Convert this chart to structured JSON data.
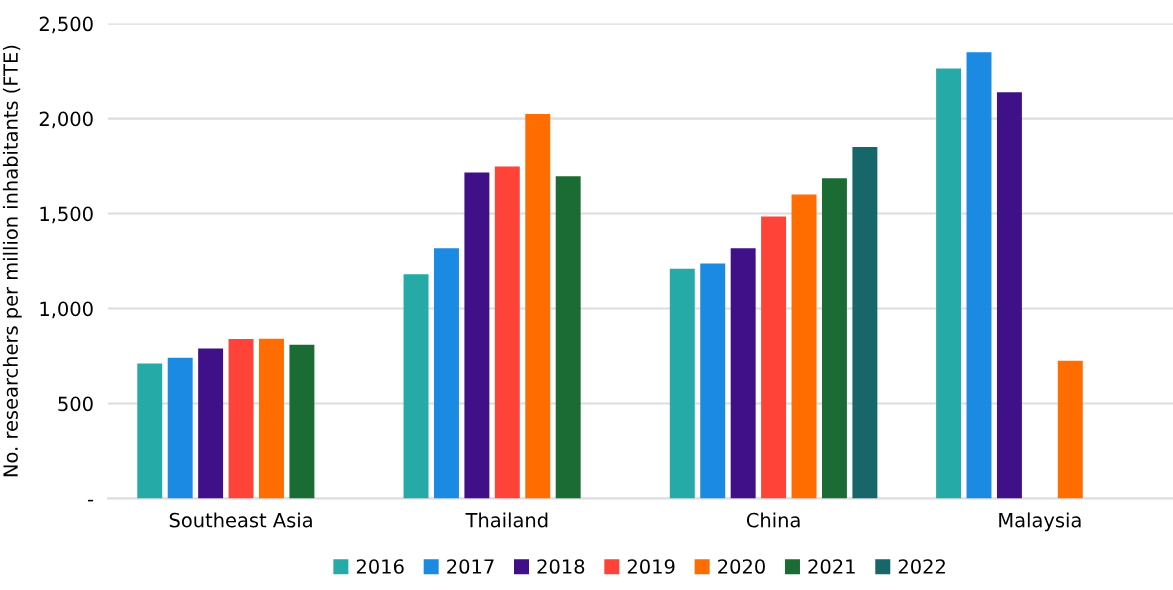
{
  "chart_data": {
    "type": "bar",
    "ylabel": "No. researchers per million inhabitants (FTE)",
    "categories": [
      "Southeast Asia",
      "Thailand",
      "China",
      "Malaysia"
    ],
    "series": [
      {
        "name": "2016",
        "color": "#26aaa8",
        "values": [
          711,
          1180,
          1209,
          2264
        ]
      },
      {
        "name": "2017",
        "color": "#1a8ae2",
        "values": [
          741,
          1317,
          1237,
          2349
        ]
      },
      {
        "name": "2018",
        "color": "#3f1087",
        "values": [
          790,
          1716,
          1317,
          2138
        ]
      },
      {
        "name": "2019",
        "color": "#ff4338",
        "values": [
          840,
          1748,
          1484,
          null
        ]
      },
      {
        "name": "2020",
        "color": "#ff6d00",
        "values": [
          841,
          2024,
          1600,
          725
        ]
      },
      {
        "name": "2021",
        "color": "#1b6c34",
        "values": [
          810,
          1697,
          1686,
          null
        ]
      },
      {
        "name": "2022",
        "color": "#17666a",
        "values": [
          null,
          null,
          1850,
          null
        ]
      }
    ],
    "ylim": [
      0,
      2500
    ],
    "yticks": [
      {
        "value": 0,
        "label": "-"
      },
      {
        "value": 500,
        "label": "500"
      },
      {
        "value": 1000,
        "label": "1,000"
      },
      {
        "value": 1500,
        "label": "1,500"
      },
      {
        "value": 2000,
        "label": "2,000"
      },
      {
        "value": 2500,
        "label": "2,500"
      }
    ],
    "grid": "y",
    "legend": "bottom"
  }
}
